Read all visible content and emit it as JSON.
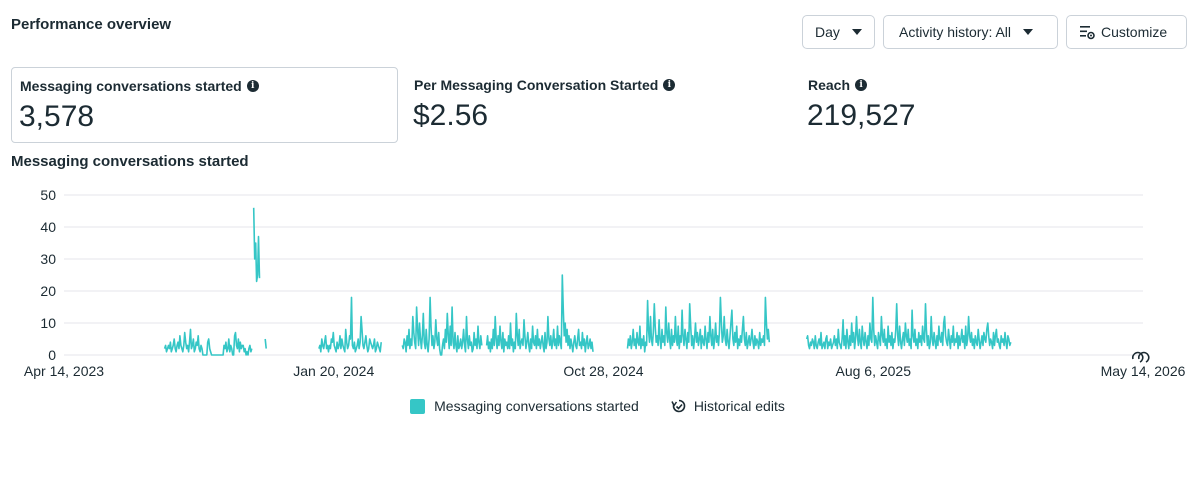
{
  "header": {
    "title": "Performance overview",
    "day_label": "Day",
    "activity_label": "Activity history: All",
    "customize_label": "Customize"
  },
  "metrics": [
    {
      "label": "Messaging conversations started",
      "value": "3,578"
    },
    {
      "label": "Per Messaging Conversation Started",
      "value": "$2.56"
    },
    {
      "label": "Reach",
      "value": "219,527"
    }
  ],
  "colors": {
    "series": "#35c6c6",
    "text": "#1c2b33",
    "grid": "#e4e6eb",
    "border": "#cbd2d9"
  },
  "icons": {
    "info": "info-icon",
    "customize": "customize-icon",
    "history": "historical-edits-icon",
    "caret": "caret-down-icon"
  },
  "chart_data": {
    "type": "line",
    "title": "Messaging conversations started",
    "ylim": [
      0,
      50
    ],
    "y_ticks": [
      "0",
      "10",
      "20",
      "30",
      "40",
      "50"
    ],
    "x_ticks": [
      "Apr 14, 2023",
      "Jan 20, 2024",
      "Oct 28, 2024",
      "Aug 6, 2025",
      "May 14, 2026"
    ],
    "grid": true,
    "legend_position": "bottom",
    "x_start": "2023-04-14",
    "x_end": "2026-05-14",
    "series": [
      {
        "name": "Messaging conversations started",
        "color": "#35c6c6",
        "segments": [
          {
            "start": "2023-07-28",
            "values": [
              2,
              3,
              1,
              2,
              3,
              2,
              4,
              1,
              2,
              3,
              5,
              2,
              1,
              3,
              4,
              2,
              6,
              3,
              2,
              1,
              3,
              7,
              4,
              2,
              3,
              1,
              4,
              8,
              2,
              3,
              5,
              1,
              2,
              4,
              3,
              6,
              2,
              1,
              3,
              2,
              0,
              0,
              0,
              0,
              0,
              4,
              5,
              2,
              1,
              0,
              0,
              0,
              0,
              0,
              0,
              0,
              0,
              0,
              0,
              0,
              0,
              0,
              3,
              2,
              4,
              1,
              2,
              5,
              1,
              3,
              2,
              0,
              0,
              6,
              7,
              3,
              2,
              5,
              1,
              4,
              2,
              3,
              3,
              1,
              2,
              0,
              1,
              0,
              2,
              3,
              1,
              2
            ]
          },
          {
            "start": "2023-10-29",
            "values": [
              46,
              30,
              35,
              23,
              25,
              37,
              24
            ]
          },
          {
            "start": "2023-11-10",
            "values": [
              5,
              2
            ]
          },
          {
            "start": "2024-01-05",
            "values": [
              2,
              3,
              1,
              5,
              3,
              2,
              4,
              6,
              2,
              3,
              1,
              3,
              2,
              5,
              4,
              7,
              3,
              2,
              1,
              4,
              2,
              3,
              6,
              2,
              5,
              3,
              2,
              1,
              8,
              4,
              2,
              3,
              6,
              5,
              18,
              3,
              2,
              4,
              1,
              2,
              3,
              5,
              2,
              4,
              12,
              8,
              3,
              2,
              4,
              6,
              3,
              1,
              2,
              5,
              4,
              3,
              2,
              3,
              5,
              1,
              2,
              4,
              3,
              2,
              1,
              4
            ]
          },
          {
            "start": "2024-04-01",
            "values": [
              3,
              2,
              5,
              4,
              1,
              6,
              3,
              8,
              2,
              5,
              3,
              12,
              7,
              4,
              2,
              15,
              8,
              3,
              10,
              5,
              2,
              6,
              13,
              4,
              2,
              8,
              3,
              1,
              5,
              18,
              9,
              3,
              6,
              2,
              4,
              11,
              5,
              3,
              7,
              2,
              0,
              0,
              3,
              5,
              2,
              8,
              4,
              13,
              6,
              2,
              9,
              3,
              15,
              4,
              2,
              7,
              3,
              1,
              6,
              2,
              3,
              5,
              2,
              4,
              8,
              3,
              1,
              12,
              5,
              2,
              6,
              3,
              4,
              1,
              2,
              7,
              3,
              5,
              2,
              9,
              4,
              2,
              6,
              3
            ]
          },
          {
            "start": "2024-06-28",
            "values": [
              3,
              6,
              2,
              4,
              1,
              5,
              2,
              8,
              3,
              12,
              5,
              2,
              6,
              3,
              9,
              4,
              2,
              7,
              1,
              5,
              3,
              4,
              2,
              6,
              2,
              10,
              3,
              5,
              1,
              4,
              2,
              13,
              6,
              3,
              8,
              2,
              4,
              5,
              3,
              11,
              6,
              2,
              4,
              7,
              3,
              1,
              5,
              2,
              9,
              4,
              3,
              6,
              2,
              8,
              3,
              5,
              2,
              4,
              6,
              3,
              1,
              7,
              2,
              4,
              12,
              5,
              3,
              6,
              2,
              4,
              8,
              3,
              5,
              2,
              9,
              3,
              6,
              4,
              2,
              25,
              14,
              6,
              10,
              4,
              8,
              3,
              6,
              2,
              5,
              3,
              1,
              4,
              6,
              3,
              2,
              5,
              8,
              3,
              4,
              2,
              7,
              3,
              5,
              1,
              4,
              6,
              2,
              3,
              5,
              2,
              4,
              1
            ]
          },
          {
            "start": "2024-11-22",
            "values": [
              2,
              5,
              3,
              6,
              2,
              4,
              8,
              3,
              5,
              2,
              7,
              4,
              3,
              9,
              2,
              5,
              3,
              6,
              1,
              4,
              3,
              17,
              8,
              4,
              12,
              5,
              3,
              7,
              16,
              9,
              4,
              6,
              3,
              11,
              5,
              2,
              8,
              4,
              6,
              3,
              15,
              7,
              4,
              10,
              5,
              2,
              8,
              3,
              6,
              4,
              12,
              5,
              3,
              9,
              2,
              6,
              4,
              14,
              6,
              3,
              8,
              5,
              2,
              7,
              4,
              16,
              9,
              3,
              6,
              2,
              5,
              10,
              4,
              7,
              3,
              5,
              8,
              2,
              6,
              4,
              3,
              9,
              5,
              2,
              7,
              4,
              12,
              6,
              3,
              8,
              2,
              5,
              10,
              4,
              6,
              3,
              7,
              18,
              10,
              4,
              6,
              12,
              5,
              3,
              8,
              4,
              2,
              6,
              10,
              14,
              5,
              3,
              7,
              4,
              9,
              2,
              5,
              3,
              6,
              4,
              8,
              12,
              5,
              3,
              7,
              2,
              4,
              6,
              3,
              5,
              8,
              4,
              2,
              6,
              3,
              5,
              4,
              2,
              7,
              3,
              5,
              4,
              6,
              3,
              18,
              10,
              5,
              8,
              4
            ]
          },
          {
            "start": "2025-05-28",
            "values": [
              5,
              6,
              3,
              2,
              4,
              3,
              5,
              4,
              2,
              6,
              3,
              2,
              4,
              5,
              3,
              7,
              2,
              3,
              4,
              2,
              5,
              6,
              2,
              4,
              3,
              5,
              2,
              3,
              4,
              6,
              3,
              5,
              2,
              8,
              4,
              3,
              2,
              5,
              11,
              3,
              6,
              2,
              8,
              4,
              2,
              6,
              3,
              10,
              4,
              7,
              2,
              5,
              12,
              6,
              3,
              8,
              4,
              2,
              9,
              5,
              3,
              7,
              4,
              2,
              6,
              3,
              10,
              5,
              4,
              18,
              8,
              3,
              6,
              4,
              2,
              7,
              5,
              3,
              12,
              6,
              4,
              8,
              3,
              5,
              2,
              9,
              4,
              6,
              3,
              7,
              2,
              5,
              4,
              8,
              16,
              6,
              3,
              9,
              4,
              2,
              5,
              7,
              3,
              10,
              6,
              4,
              8,
              3,
              5,
              2,
              14,
              6,
              4,
              8,
              3,
              5,
              2,
              7,
              4,
              6,
              3,
              9,
              5,
              4,
              16,
              8,
              3,
              6,
              2,
              4,
              12,
              5,
              3,
              7,
              4,
              2,
              6,
              3,
              9,
              5,
              4,
              7,
              3,
              10,
              12,
              6,
              4,
              3,
              8,
              5,
              2,
              6,
              4,
              9,
              3,
              5,
              4,
              7,
              2,
              6,
              3,
              5,
              8,
              4,
              6,
              2,
              9,
              3,
              5,
              12,
              6,
              4,
              7,
              3,
              5,
              2,
              6,
              4,
              3,
              8,
              5,
              2,
              4,
              6,
              3,
              7,
              5,
              4,
              8,
              10,
              6,
              3,
              5,
              4,
              2,
              7,
              3,
              6,
              8,
              4,
              5,
              3,
              2,
              6,
              4,
              5,
              3,
              7,
              4,
              2,
              6,
              5,
              3,
              4
            ]
          }
        ]
      }
    ]
  },
  "legend": {
    "series_label": "Messaging conversations started",
    "history_label": "Historical edits"
  }
}
